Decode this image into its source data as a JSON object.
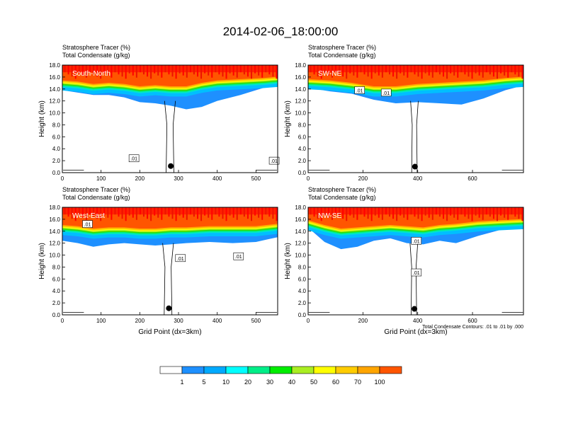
{
  "figure_title": "2014-02-06_18:00:00",
  "chart_data": [
    {
      "type": "heatmap",
      "panel_label": "South-North",
      "title_lines": [
        "Stratosphere Tracer   (%)",
        "Total Condensate   (g/kg)"
      ],
      "ylabel": "Height (km)",
      "xlabel": "",
      "xlim": [
        0,
        556
      ],
      "ylim": [
        0,
        18
      ],
      "x_ticks": [
        0,
        100,
        200,
        300,
        400,
        500
      ],
      "y_ticks": [
        "0.0",
        "2.0",
        "4.0",
        "6.0",
        "8.0",
        "10.0",
        "12.0",
        "14.0",
        "16.0",
        "18.0"
      ],
      "contour_labels": [
        {
          "text": ".01",
          "x": 185,
          "y": 2.4
        },
        {
          "text": ".01",
          "x": 547,
          "y": 2.0
        }
      ],
      "marker": {
        "x": 280,
        "y": 1.1
      },
      "tracer_profile": [
        {
          "x": 0,
          "top_green": 14.6,
          "bottom_blue": 13.8
        },
        {
          "x": 40,
          "top_green": 14.4,
          "bottom_blue": 13.4
        },
        {
          "x": 80,
          "top_green": 14.0,
          "bottom_blue": 13.0
        },
        {
          "x": 120,
          "top_green": 14.2,
          "bottom_blue": 13.0
        },
        {
          "x": 160,
          "top_green": 14.0,
          "bottom_blue": 12.6
        },
        {
          "x": 200,
          "top_green": 13.6,
          "bottom_blue": 11.8
        },
        {
          "x": 240,
          "top_green": 13.8,
          "bottom_blue": 11.6
        },
        {
          "x": 280,
          "top_green": 13.6,
          "bottom_blue": 11.2
        },
        {
          "x": 320,
          "top_green": 13.6,
          "bottom_blue": 10.6
        },
        {
          "x": 360,
          "top_green": 14.2,
          "bottom_blue": 11.0
        },
        {
          "x": 400,
          "top_green": 14.6,
          "bottom_blue": 12.0
        },
        {
          "x": 460,
          "top_green": 14.8,
          "bottom_blue": 13.0
        },
        {
          "x": 520,
          "top_green": 15.0,
          "bottom_blue": 14.2
        },
        {
          "x": 556,
          "top_green": 15.2,
          "bottom_blue": 14.6
        }
      ]
    },
    {
      "type": "heatmap",
      "panel_label": "SW-NE",
      "title_lines": [
        "Stratosphere Tracer   (%)",
        "Total Condensate   (g/kg)"
      ],
      "ylabel": "Height (km)",
      "xlabel": "",
      "xlim": [
        0,
        786
      ],
      "ylim": [
        0,
        18
      ],
      "x_ticks": [
        0,
        200,
        400,
        600
      ],
      "y_ticks": [
        "0.0",
        "2.0",
        "4.0",
        "6.0",
        "8.0",
        "10.0",
        "12.0",
        "14.0",
        "16.0",
        "18.0"
      ],
      "contour_labels": [
        {
          "text": ".01",
          "x": 188,
          "y": 13.8
        },
        {
          "text": ".01",
          "x": 285,
          "y": 13.4
        }
      ],
      "marker": {
        "x": 390,
        "y": 1.0
      },
      "tracer_profile": [
        {
          "x": 0,
          "top_green": 14.8,
          "bottom_blue": 14.2
        },
        {
          "x": 80,
          "top_green": 14.6,
          "bottom_blue": 13.6
        },
        {
          "x": 160,
          "top_green": 14.2,
          "bottom_blue": 13.2
        },
        {
          "x": 240,
          "top_green": 13.6,
          "bottom_blue": 12.2
        },
        {
          "x": 320,
          "top_green": 13.6,
          "bottom_blue": 11.6
        },
        {
          "x": 400,
          "top_green": 14.0,
          "bottom_blue": 11.8
        },
        {
          "x": 480,
          "top_green": 14.2,
          "bottom_blue": 11.6
        },
        {
          "x": 560,
          "top_green": 14.4,
          "bottom_blue": 11.4
        },
        {
          "x": 640,
          "top_green": 14.6,
          "bottom_blue": 12.4
        },
        {
          "x": 720,
          "top_green": 15.0,
          "bottom_blue": 13.8
        },
        {
          "x": 786,
          "top_green": 15.2,
          "bottom_blue": 14.6
        }
      ]
    },
    {
      "type": "heatmap",
      "panel_label": "West-East",
      "title_lines": [
        "Stratosphere Tracer   (%)",
        "Total Condensate   (g/kg)"
      ],
      "ylabel": "Height (km)",
      "xlabel": "Grid Point (dx=3km)",
      "xlim": [
        0,
        556
      ],
      "ylim": [
        0,
        18
      ],
      "x_ticks": [
        0,
        100,
        200,
        300,
        400,
        500
      ],
      "y_ticks": [
        "0.0",
        "2.0",
        "4.0",
        "6.0",
        "8.0",
        "10.0",
        "12.0",
        "14.0",
        "16.0",
        "18.0"
      ],
      "contour_labels": [
        {
          "text": ".01",
          "x": 65,
          "y": 15.2
        },
        {
          "text": ".01",
          "x": 305,
          "y": 9.5
        },
        {
          "text": ".01",
          "x": 455,
          "y": 9.8
        }
      ],
      "marker": {
        "x": 275,
        "y": 1.1
      },
      "tracer_profile": [
        {
          "x": 0,
          "top_green": 14.2,
          "bottom_blue": 12.4
        },
        {
          "x": 40,
          "top_green": 14.0,
          "bottom_blue": 12.0
        },
        {
          "x": 80,
          "top_green": 13.6,
          "bottom_blue": 11.4
        },
        {
          "x": 120,
          "top_green": 13.8,
          "bottom_blue": 11.8
        },
        {
          "x": 160,
          "top_green": 13.8,
          "bottom_blue": 12.0
        },
        {
          "x": 200,
          "top_green": 13.6,
          "bottom_blue": 11.8
        },
        {
          "x": 240,
          "top_green": 13.6,
          "bottom_blue": 11.6
        },
        {
          "x": 280,
          "top_green": 13.8,
          "bottom_blue": 11.8
        },
        {
          "x": 320,
          "top_green": 13.8,
          "bottom_blue": 12.0
        },
        {
          "x": 380,
          "top_green": 14.0,
          "bottom_blue": 12.2
        },
        {
          "x": 440,
          "top_green": 14.0,
          "bottom_blue": 12.0
        },
        {
          "x": 500,
          "top_green": 14.0,
          "bottom_blue": 12.2
        },
        {
          "x": 556,
          "top_green": 14.4,
          "bottom_blue": 13.0
        }
      ]
    },
    {
      "type": "heatmap",
      "panel_label": "NW-SE",
      "title_lines": [
        "Stratosphere Tracer   (%)",
        "Total Condensate   (g/kg)"
      ],
      "ylabel": "Height (km)",
      "xlabel": "Grid Point (dx=3km)",
      "footnote": "Total Condensate Contours: .01 to .01 by .000",
      "xlim": [
        0,
        786
      ],
      "ylim": [
        0,
        18
      ],
      "x_ticks": [
        0,
        200,
        400,
        600
      ],
      "y_ticks": [
        "0.0",
        "2.0",
        "4.0",
        "6.0",
        "8.0",
        "10.0",
        "12.0",
        "14.0",
        "16.0",
        "18.0"
      ],
      "contour_labels": [
        {
          "text": ".01",
          "x": 395,
          "y": 12.4
        },
        {
          "text": ".01",
          "x": 395,
          "y": 7.1
        }
      ],
      "marker": {
        "x": 388,
        "y": 1.0
      },
      "tracer_profile": [
        {
          "x": 0,
          "top_green": 15.0,
          "bottom_blue": 14.6
        },
        {
          "x": 60,
          "top_green": 14.2,
          "bottom_blue": 12.2
        },
        {
          "x": 120,
          "top_green": 13.6,
          "bottom_blue": 11.0
        },
        {
          "x": 180,
          "top_green": 13.8,
          "bottom_blue": 11.4
        },
        {
          "x": 240,
          "top_green": 14.0,
          "bottom_blue": 12.4
        },
        {
          "x": 300,
          "top_green": 14.2,
          "bottom_blue": 12.8
        },
        {
          "x": 360,
          "top_green": 14.0,
          "bottom_blue": 12.0
        },
        {
          "x": 420,
          "top_green": 13.8,
          "bottom_blue": 11.8
        },
        {
          "x": 480,
          "top_green": 14.2,
          "bottom_blue": 12.4
        },
        {
          "x": 540,
          "top_green": 14.4,
          "bottom_blue": 12.0
        },
        {
          "x": 620,
          "top_green": 14.8,
          "bottom_blue": 13.2
        },
        {
          "x": 700,
          "top_green": 15.0,
          "bottom_blue": 14.2
        },
        {
          "x": 786,
          "top_green": 15.2,
          "bottom_blue": 14.8
        }
      ]
    }
  ],
  "colorbar": {
    "labels": [
      "1",
      "5",
      "10",
      "20",
      "30",
      "40",
      "50",
      "60",
      "70",
      "100"
    ],
    "colors": [
      "#ffffff",
      "#1e90ff",
      "#00aaff",
      "#00ffff",
      "#00ee88",
      "#00ee00",
      "#aaee22",
      "#ffff00",
      "#ffcc00",
      "#ffa500",
      "#ff5500",
      "#ff0000"
    ]
  }
}
